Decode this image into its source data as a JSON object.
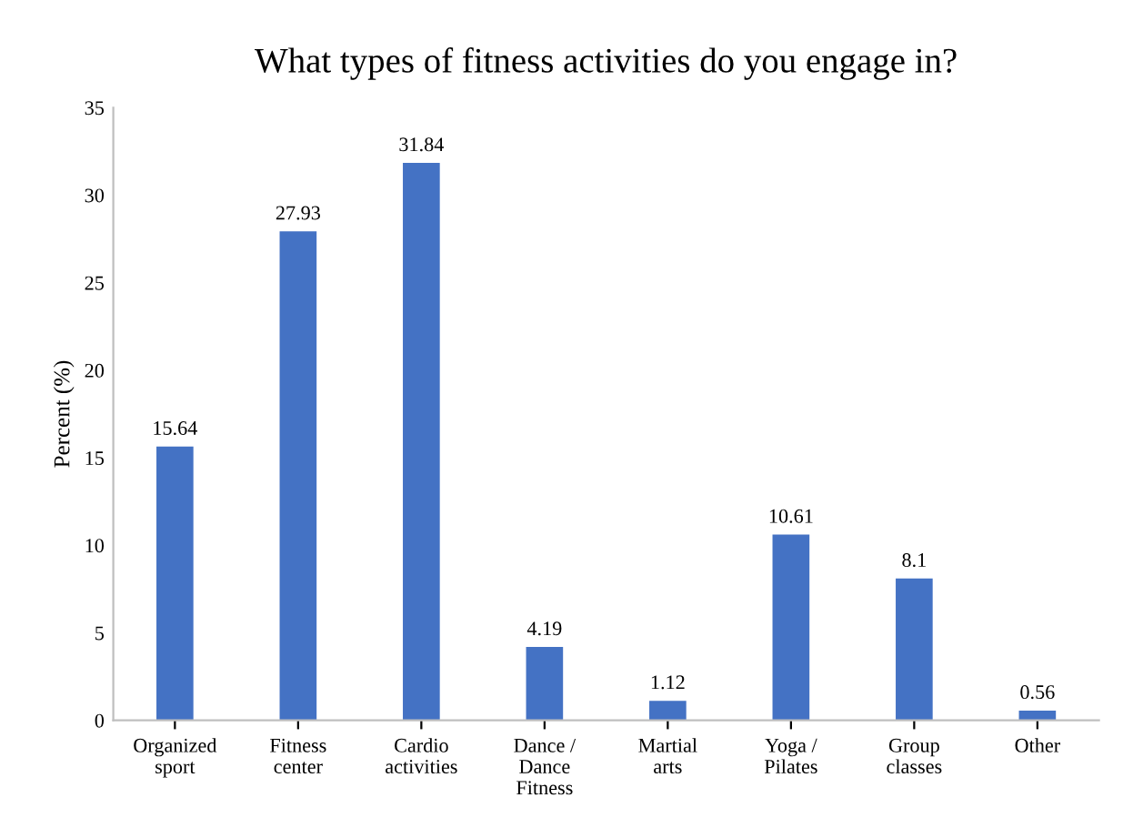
{
  "chart_data": {
    "type": "bar",
    "title": "What types of fitness activities do you engage in?",
    "ylabel": "Percent (%)",
    "categories": [
      "Organized\nsport",
      "Fitness\ncenter",
      "Cardio\nactivities",
      "Dance /\nDance\nFitness",
      "Martial\narts",
      "Yoga /\nPilates",
      "Group\nclasses",
      "Other"
    ],
    "values": [
      15.64,
      27.93,
      31.84,
      4.19,
      1.12,
      10.61,
      8.1,
      0.56
    ],
    "color": "#4472c4",
    "ylim": [
      0,
      35
    ],
    "yticks": [
      0,
      5,
      10,
      15,
      20,
      25,
      30,
      35
    ],
    "grid": false,
    "data_labels": true
  }
}
